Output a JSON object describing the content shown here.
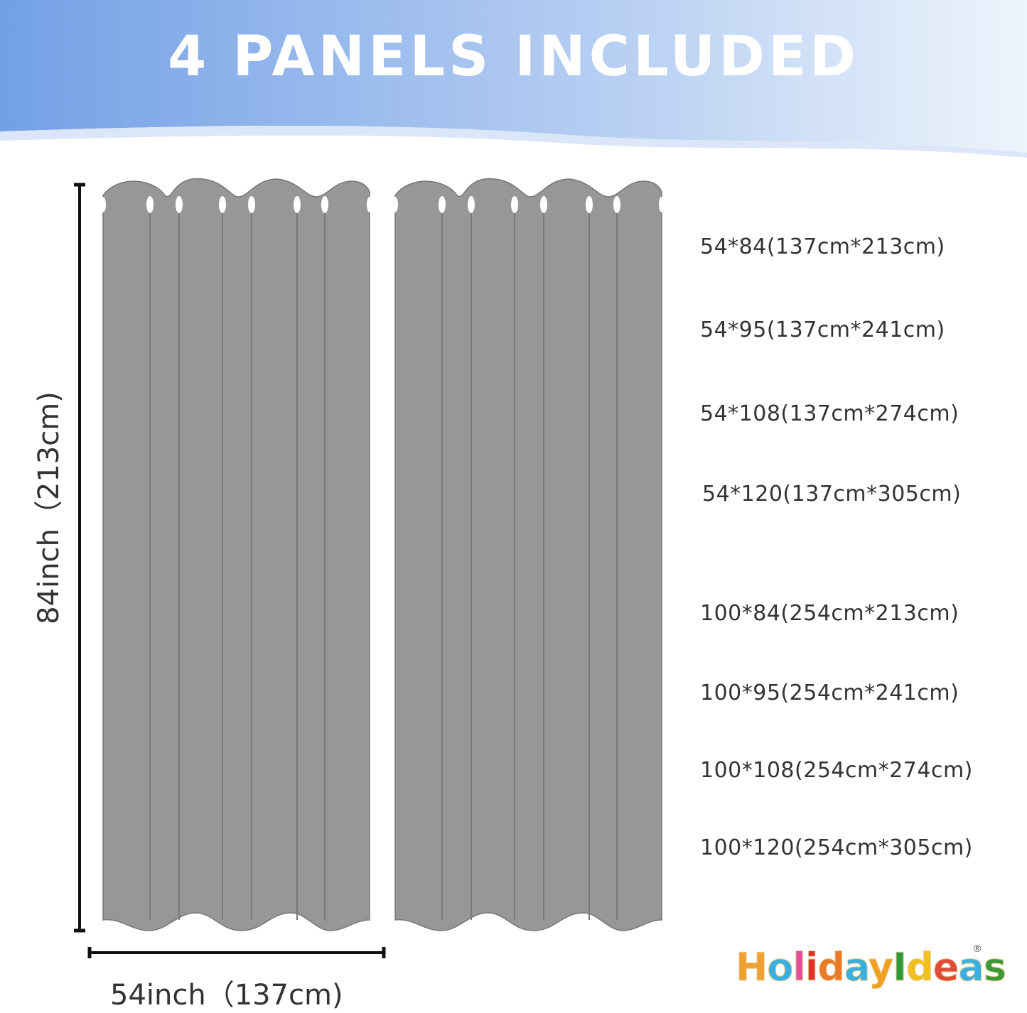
{
  "header": {
    "title": "4 PANELS INCLUDED",
    "gradient_colors": [
      "#73a0e6",
      "#eef4fc"
    ]
  },
  "panel": {
    "count_shown": 2,
    "color": "#979797",
    "outline": "#777777"
  },
  "dimensions": {
    "height_label": "84inch（213cm)",
    "width_label": "54inch（137cm)"
  },
  "sizes": [
    "54*84(137cm*213cm)",
    "54*95(137cm*241cm)",
    "54*108(137cm*274cm)",
    "54*120(137cm*305cm)",
    "100*84(254cm*213cm)",
    "100*95(254cm*241cm)",
    "100*108(254cm*274cm)",
    "100*120(254cm*305cm)"
  ],
  "logo": {
    "text": "HolidayIdeas",
    "registered": "®",
    "letter_colors": [
      "#f0a030",
      "#3ab0e0",
      "#e0509a",
      "#e0302a",
      "#e87a2a",
      "#3aaedc",
      "#f0a020",
      "#2e9a3a",
      "#f0c020",
      "#e04a3a",
      "#3ab0e0",
      "#3a9a3a"
    ]
  }
}
